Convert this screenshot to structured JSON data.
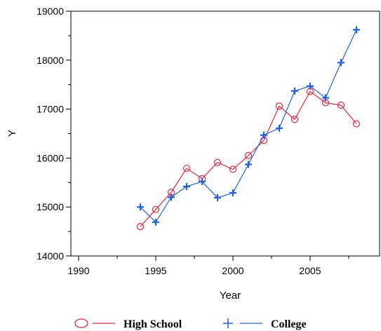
{
  "chart_data": {
    "type": "line",
    "xlabel": "Year",
    "ylabel": "Y",
    "xlim": [
      1989.5,
      2009.5
    ],
    "ylim": [
      14000,
      19000
    ],
    "x_ticks": [
      1990,
      1995,
      2000,
      2005
    ],
    "y_ticks": [
      14000,
      15000,
      16000,
      17000,
      18000,
      19000
    ],
    "grid": false,
    "legend_position": "bottom",
    "series": [
      {
        "name": "High School",
        "color": "#e8243c",
        "marker": "circle",
        "x": [
          1994,
          1995,
          1996,
          1997,
          1998,
          1999,
          2000,
          2001,
          2002,
          2003,
          2004,
          2005,
          2006,
          2007,
          2008
        ],
        "y": [
          14600,
          14950,
          15300,
          15790,
          15580,
          15910,
          15770,
          16050,
          16360,
          17060,
          16790,
          17360,
          17130,
          17080,
          16700
        ]
      },
      {
        "name": "College",
        "color": "#1f5fe8",
        "marker": "plus",
        "x": [
          1994,
          1995,
          1996,
          1997,
          1998,
          1999,
          2000,
          2001,
          2002,
          2003,
          2004,
          2005,
          2006,
          2007,
          2008
        ],
        "y": [
          15000,
          14690,
          15200,
          15420,
          15520,
          15190,
          15290,
          15870,
          16470,
          16610,
          17370,
          17470,
          17230,
          17950,
          18620
        ]
      }
    ]
  }
}
